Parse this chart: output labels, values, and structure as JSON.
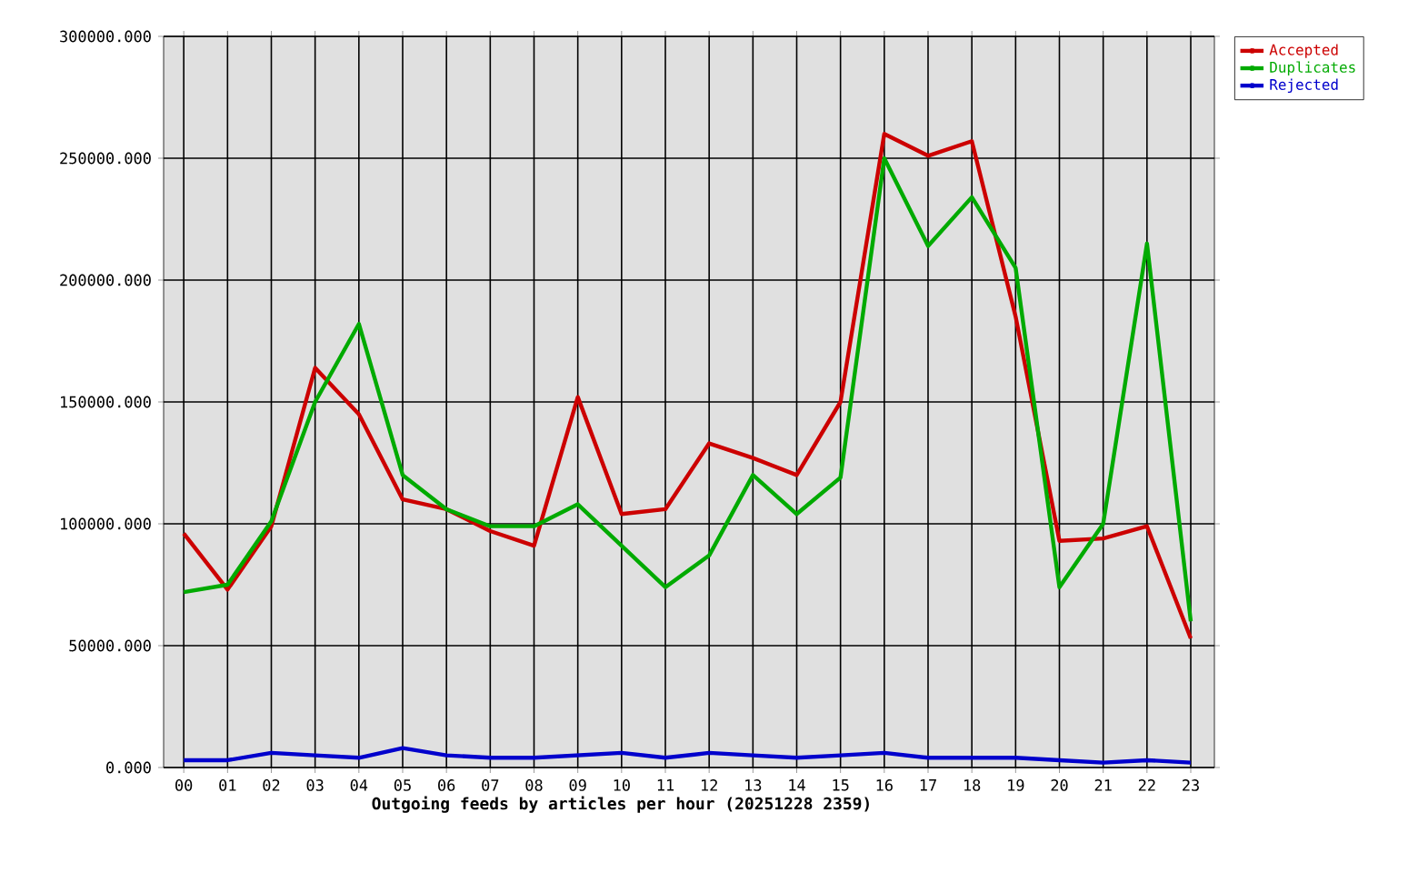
{
  "chart_data": {
    "type": "line",
    "xlabel": "Outgoing feeds by articles per hour (20251228 2359)",
    "categories": [
      "00",
      "01",
      "02",
      "03",
      "04",
      "05",
      "06",
      "07",
      "08",
      "09",
      "10",
      "11",
      "12",
      "13",
      "14",
      "15",
      "16",
      "17",
      "18",
      "19",
      "20",
      "21",
      "22",
      "23"
    ],
    "series": [
      {
        "name": "Accepted",
        "color": "#cc0000",
        "values": [
          96000,
          73000,
          99000,
          164000,
          145000,
          110000,
          106000,
          97000,
          91000,
          152000,
          104000,
          106000,
          133000,
          127000,
          120000,
          150000,
          260000,
          251000,
          257000,
          185000,
          93000,
          94000,
          99000,
          53000
        ]
      },
      {
        "name": "Duplicates",
        "color": "#00aa00",
        "values": [
          72000,
          75000,
          101000,
          150000,
          182000,
          120000,
          106000,
          99000,
          99000,
          108000,
          91000,
          74000,
          87000,
          120000,
          104000,
          119000,
          250000,
          214000,
          234000,
          205000,
          74000,
          100000,
          215000,
          60000
        ]
      },
      {
        "name": "Rejected",
        "color": "#0000cc",
        "values": [
          3000,
          3000,
          6000,
          5000,
          4000,
          8000,
          5000,
          4000,
          4000,
          5000,
          6000,
          4000,
          6000,
          5000,
          4000,
          5000,
          6000,
          4000,
          4000,
          4000,
          3000,
          2000,
          3000,
          2000
        ]
      }
    ],
    "ylim": [
      0,
      300000
    ],
    "yticks": [
      {
        "value": 0,
        "label": "0.000"
      },
      {
        "value": 50000,
        "label": "50000.000"
      },
      {
        "value": 100000,
        "label": "100000.000"
      },
      {
        "value": 150000,
        "label": "150000.000"
      },
      {
        "value": 200000,
        "label": "200000.000"
      },
      {
        "value": 250000,
        "label": "250000.000"
      },
      {
        "value": 300000,
        "label": "300000.000"
      }
    ],
    "grid": true,
    "legend": "top right"
  }
}
